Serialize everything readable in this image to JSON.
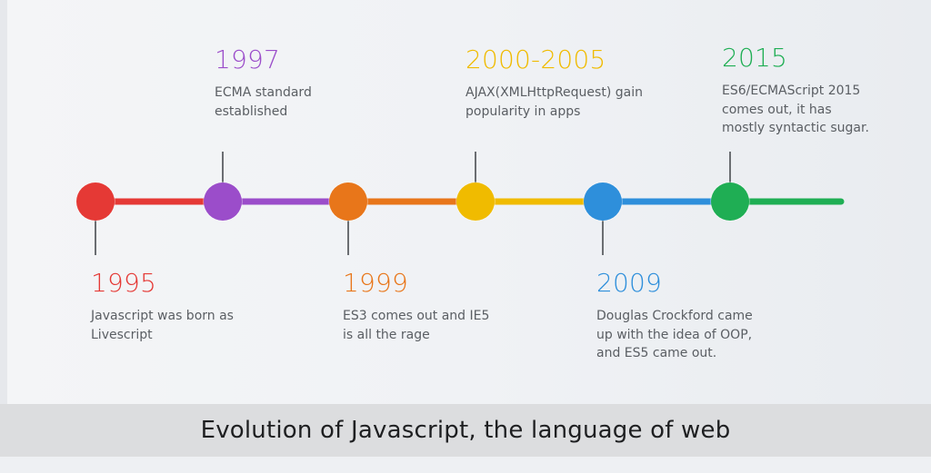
{
  "events": [
    {
      "year": "1995",
      "text": [
        "Javascript was born as",
        "Livescript"
      ],
      "color": "#e53935"
    },
    {
      "year": "1997",
      "text": [
        "ECMA standard",
        "established"
      ],
      "color": "#9b4dca"
    },
    {
      "year": "1999",
      "text": [
        "ES3 comes out and IE5",
        "is all the rage"
      ],
      "color": "#e8761a"
    },
    {
      "year": "2000-2005",
      "text": [
        "AJAX(XMLHttpRequest) gain",
        "popularity in apps"
      ],
      "color": "#f0bb00"
    },
    {
      "year": "2009",
      "text": [
        "Douglas Crockford came",
        "up with the idea of OOP,",
        "and ES5 came out."
      ],
      "color": "#2e8fdb"
    },
    {
      "year": "2015",
      "text": [
        "ES6/ECMAScript 2015",
        "comes out, it has",
        "mostly syntactic sugar."
      ],
      "color": "#1fae54"
    }
  ],
  "caption": "Evolution of Javascript, the language of web",
  "colors": {
    "connector": "#6b6e72",
    "caption_bg": "#dcdddf",
    "caption_text": "#1e1f21"
  }
}
